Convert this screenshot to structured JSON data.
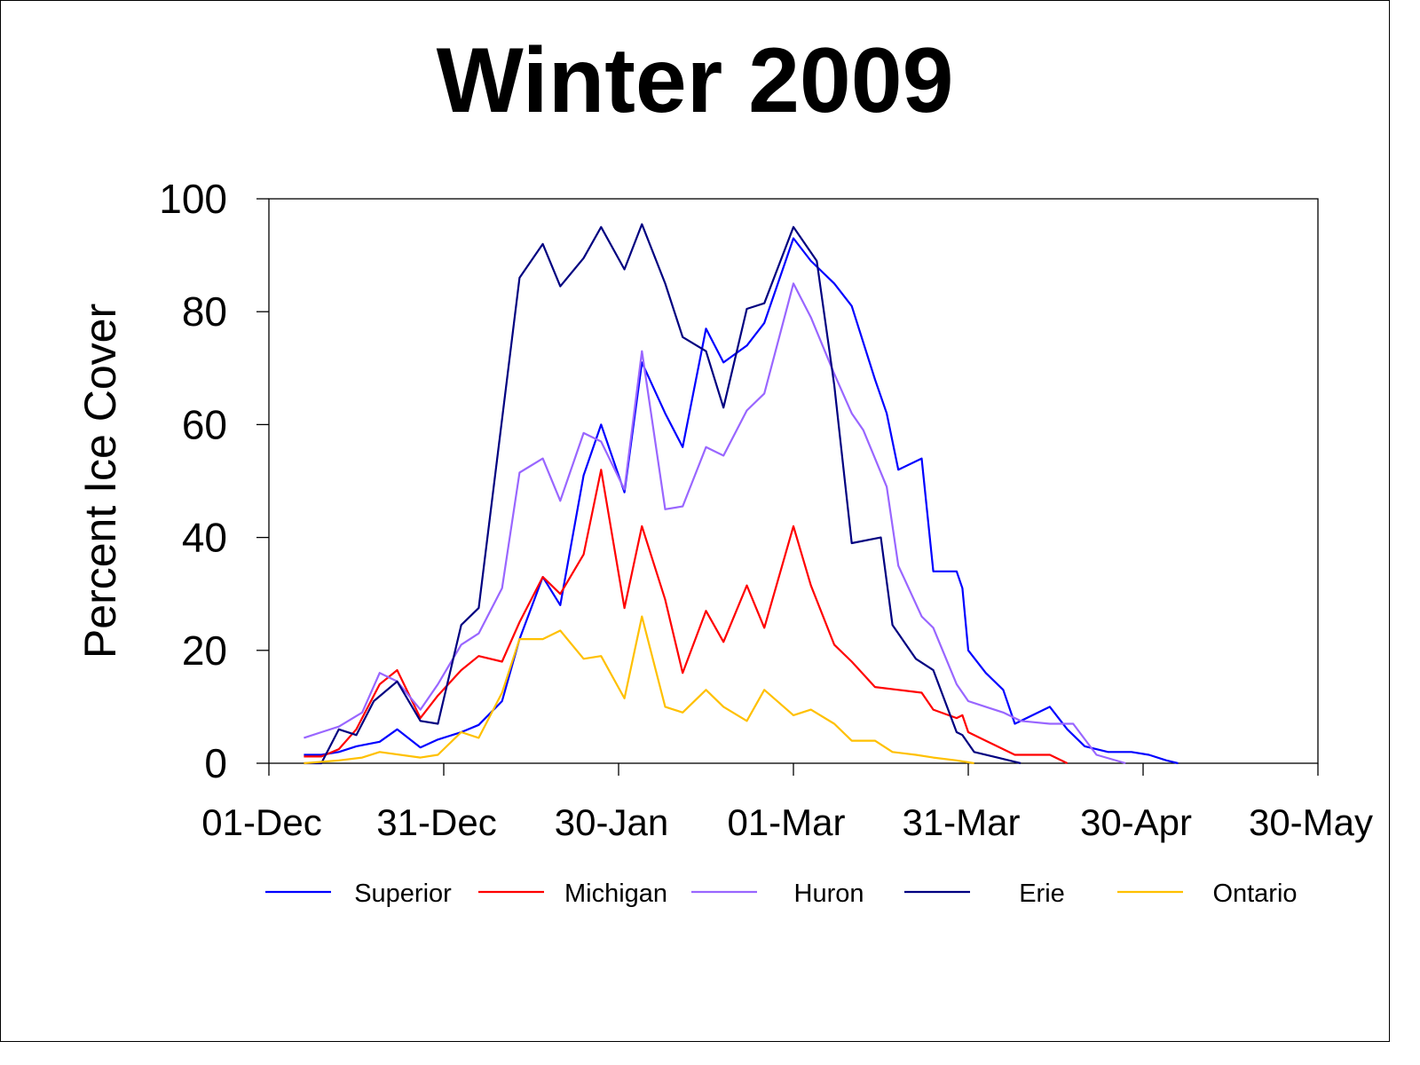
{
  "chart_data": {
    "type": "line",
    "title": "Winter 2009",
    "xlabel": "",
    "ylabel": "Percent Ice Cover",
    "ylim": [
      0,
      100
    ],
    "y_ticks": [
      "0",
      "20",
      "40",
      "60",
      "80",
      "100"
    ],
    "x_tick_labels": [
      "01-Dec",
      "31-Dec",
      "30-Jan",
      "01-Mar",
      "31-Mar",
      "30-Apr",
      "30-May"
    ],
    "x_tick_dates": [
      "2008-12-01",
      "2008-12-31",
      "2009-01-30",
      "2009-03-01",
      "2009-03-31",
      "2009-04-30",
      "2009-05-30"
    ],
    "xlim": [
      "2008-12-01",
      "2009-05-30"
    ],
    "grid": false,
    "legend_position": "bottom",
    "series": [
      {
        "name": "Superior",
        "color": "#0000FF",
        "points": [
          [
            "2008-12-07",
            1.5
          ],
          [
            "2008-12-10",
            1.5
          ],
          [
            "2008-12-13",
            2
          ],
          [
            "2008-12-16",
            3
          ],
          [
            "2008-12-20",
            3.8
          ],
          [
            "2008-12-23",
            6
          ],
          [
            "2008-12-27",
            2.8
          ],
          [
            "2008-12-30",
            4.2
          ],
          [
            "2009-01-03",
            5.5
          ],
          [
            "2009-01-06",
            6.8
          ],
          [
            "2009-01-10",
            11
          ],
          [
            "2009-01-13",
            22
          ],
          [
            "2009-01-17",
            33
          ],
          [
            "2009-01-20",
            28
          ],
          [
            "2009-01-24",
            51
          ],
          [
            "2009-01-27",
            60
          ],
          [
            "2009-01-31",
            48
          ],
          [
            "2009-02-03",
            71
          ],
          [
            "2009-02-07",
            62
          ],
          [
            "2009-02-10",
            56
          ],
          [
            "2009-02-14",
            77
          ],
          [
            "2009-02-17",
            71
          ],
          [
            "2009-02-21",
            74
          ],
          [
            "2009-02-24",
            78
          ],
          [
            "2009-03-01",
            93
          ],
          [
            "2009-03-04",
            89
          ],
          [
            "2009-03-08",
            85
          ],
          [
            "2009-03-11",
            81
          ],
          [
            "2009-03-15",
            68
          ],
          [
            "2009-03-17",
            62
          ],
          [
            "2009-03-19",
            52
          ],
          [
            "2009-03-23",
            54
          ],
          [
            "2009-03-25",
            34
          ],
          [
            "2009-03-29",
            34
          ],
          [
            "2009-03-30",
            31
          ],
          [
            "2009-03-31",
            20
          ],
          [
            "2009-04-03",
            16
          ],
          [
            "2009-04-06",
            13
          ],
          [
            "2009-04-08",
            7
          ],
          [
            "2009-04-10",
            8
          ],
          [
            "2009-04-14",
            10
          ],
          [
            "2009-04-17",
            6
          ],
          [
            "2009-04-20",
            3
          ],
          [
            "2009-04-24",
            2
          ],
          [
            "2009-04-28",
            2
          ],
          [
            "2009-05-01",
            1.5
          ],
          [
            "2009-05-04",
            0.5
          ],
          [
            "2009-05-06",
            0
          ]
        ]
      },
      {
        "name": "Michigan",
        "color": "#FF0000",
        "points": [
          [
            "2008-12-07",
            1.2
          ],
          [
            "2008-12-10",
            1.2
          ],
          [
            "2008-12-13",
            2.5
          ],
          [
            "2008-12-16",
            6
          ],
          [
            "2008-12-20",
            14
          ],
          [
            "2008-12-23",
            16.5
          ],
          [
            "2008-12-27",
            8
          ],
          [
            "2008-12-30",
            12
          ],
          [
            "2009-01-03",
            16.5
          ],
          [
            "2009-01-06",
            19
          ],
          [
            "2009-01-10",
            18
          ],
          [
            "2009-01-13",
            25
          ],
          [
            "2009-01-17",
            33
          ],
          [
            "2009-01-20",
            30
          ],
          [
            "2009-01-24",
            37
          ],
          [
            "2009-01-27",
            52
          ],
          [
            "2009-01-31",
            27.5
          ],
          [
            "2009-02-03",
            42
          ],
          [
            "2009-02-07",
            29
          ],
          [
            "2009-02-10",
            16
          ],
          [
            "2009-02-14",
            27
          ],
          [
            "2009-02-17",
            21.5
          ],
          [
            "2009-02-21",
            31.5
          ],
          [
            "2009-02-24",
            24
          ],
          [
            "2009-03-01",
            42
          ],
          [
            "2009-03-04",
            31.5
          ],
          [
            "2009-03-08",
            21
          ],
          [
            "2009-03-11",
            18
          ],
          [
            "2009-03-15",
            13.5
          ],
          [
            "2009-03-19",
            13
          ],
          [
            "2009-03-23",
            12.5
          ],
          [
            "2009-03-25",
            9.5
          ],
          [
            "2009-03-29",
            8
          ],
          [
            "2009-03-30",
            8.5
          ],
          [
            "2009-03-31",
            5.5
          ],
          [
            "2009-04-03",
            4
          ],
          [
            "2009-04-08",
            1.5
          ],
          [
            "2009-04-14",
            1.5
          ],
          [
            "2009-04-17",
            0
          ]
        ]
      },
      {
        "name": "Huron",
        "color": "#9966FF",
        "points": [
          [
            "2008-12-07",
            4.5
          ],
          [
            "2008-12-10",
            5.5
          ],
          [
            "2008-12-13",
            6.5
          ],
          [
            "2008-12-17",
            9
          ],
          [
            "2008-12-20",
            16
          ],
          [
            "2008-12-23",
            14.5
          ],
          [
            "2008-12-27",
            9.5
          ],
          [
            "2008-12-30",
            14
          ],
          [
            "2009-01-03",
            21
          ],
          [
            "2009-01-06",
            23
          ],
          [
            "2009-01-10",
            31
          ],
          [
            "2009-01-13",
            51.5
          ],
          [
            "2009-01-17",
            54
          ],
          [
            "2009-01-20",
            46.5
          ],
          [
            "2009-01-24",
            58.5
          ],
          [
            "2009-01-27",
            57
          ],
          [
            "2009-01-31",
            48.5
          ],
          [
            "2009-02-03",
            73
          ],
          [
            "2009-02-07",
            45
          ],
          [
            "2009-02-10",
            45.5
          ],
          [
            "2009-02-14",
            56
          ],
          [
            "2009-02-17",
            54.5
          ],
          [
            "2009-02-21",
            62.5
          ],
          [
            "2009-02-24",
            65.5
          ],
          [
            "2009-03-01",
            85
          ],
          [
            "2009-03-04",
            79
          ],
          [
            "2009-03-08",
            69
          ],
          [
            "2009-03-11",
            62
          ],
          [
            "2009-03-13",
            59
          ],
          [
            "2009-03-17",
            49
          ],
          [
            "2009-03-19",
            35
          ],
          [
            "2009-03-23",
            26
          ],
          [
            "2009-03-25",
            24
          ],
          [
            "2009-03-29",
            14
          ],
          [
            "2009-03-31",
            11
          ],
          [
            "2009-04-03",
            10
          ],
          [
            "2009-04-06",
            9
          ],
          [
            "2009-04-09",
            7.5
          ],
          [
            "2009-04-14",
            7
          ],
          [
            "2009-04-18",
            7
          ],
          [
            "2009-04-22",
            1.5
          ],
          [
            "2009-04-27",
            0
          ]
        ]
      },
      {
        "name": "Erie",
        "color": "#000080",
        "points": [
          [
            "2008-12-07",
            0
          ],
          [
            "2008-12-10",
            0
          ],
          [
            "2008-12-13",
            6
          ],
          [
            "2008-12-16",
            5
          ],
          [
            "2008-12-19",
            11
          ],
          [
            "2008-12-23",
            14.5
          ],
          [
            "2008-12-27",
            7.5
          ],
          [
            "2008-12-30",
            7
          ],
          [
            "2009-01-03",
            24.5
          ],
          [
            "2009-01-06",
            27.5
          ],
          [
            "2009-01-13",
            86
          ],
          [
            "2009-01-17",
            92
          ],
          [
            "2009-01-20",
            84.5
          ],
          [
            "2009-01-24",
            89.5
          ],
          [
            "2009-01-27",
            95
          ],
          [
            "2009-01-31",
            87.5
          ],
          [
            "2009-02-03",
            95.5
          ],
          [
            "2009-02-07",
            85
          ],
          [
            "2009-02-10",
            75.5
          ],
          [
            "2009-02-14",
            73
          ],
          [
            "2009-02-17",
            63
          ],
          [
            "2009-02-21",
            80.5
          ],
          [
            "2009-02-24",
            81.5
          ],
          [
            "2009-03-01",
            95
          ],
          [
            "2009-03-05",
            89
          ],
          [
            "2009-03-08",
            67
          ],
          [
            "2009-03-11",
            39
          ],
          [
            "2009-03-16",
            40
          ],
          [
            "2009-03-18",
            24.5
          ],
          [
            "2009-03-22",
            18.5
          ],
          [
            "2009-03-25",
            16.5
          ],
          [
            "2009-03-29",
            5.5
          ],
          [
            "2009-03-30",
            5
          ],
          [
            "2009-04-01",
            2
          ],
          [
            "2009-04-05",
            1
          ],
          [
            "2009-04-09",
            0
          ]
        ]
      },
      {
        "name": "Ontario",
        "color": "#FFC000",
        "points": [
          [
            "2008-12-07",
            0
          ],
          [
            "2008-12-13",
            0.5
          ],
          [
            "2008-12-17",
            1
          ],
          [
            "2008-12-20",
            2
          ],
          [
            "2008-12-27",
            1
          ],
          [
            "2008-12-30",
            1.5
          ],
          [
            "2009-01-03",
            5.5
          ],
          [
            "2009-01-06",
            4.5
          ],
          [
            "2009-01-10",
            12.5
          ],
          [
            "2009-01-13",
            22
          ],
          [
            "2009-01-17",
            22
          ],
          [
            "2009-01-20",
            23.5
          ],
          [
            "2009-01-24",
            18.5
          ],
          [
            "2009-01-27",
            19
          ],
          [
            "2009-01-31",
            11.5
          ],
          [
            "2009-02-03",
            26
          ],
          [
            "2009-02-07",
            10
          ],
          [
            "2009-02-10",
            9
          ],
          [
            "2009-02-14",
            13
          ],
          [
            "2009-02-17",
            10
          ],
          [
            "2009-02-21",
            7.5
          ],
          [
            "2009-02-24",
            13
          ],
          [
            "2009-03-01",
            8.5
          ],
          [
            "2009-03-04",
            9.5
          ],
          [
            "2009-03-08",
            7
          ],
          [
            "2009-03-11",
            4
          ],
          [
            "2009-03-15",
            4
          ],
          [
            "2009-03-18",
            2
          ],
          [
            "2009-03-22",
            1.5
          ],
          [
            "2009-03-25",
            1
          ],
          [
            "2009-03-29",
            0.5
          ],
          [
            "2009-04-01",
            0
          ]
        ]
      }
    ]
  }
}
